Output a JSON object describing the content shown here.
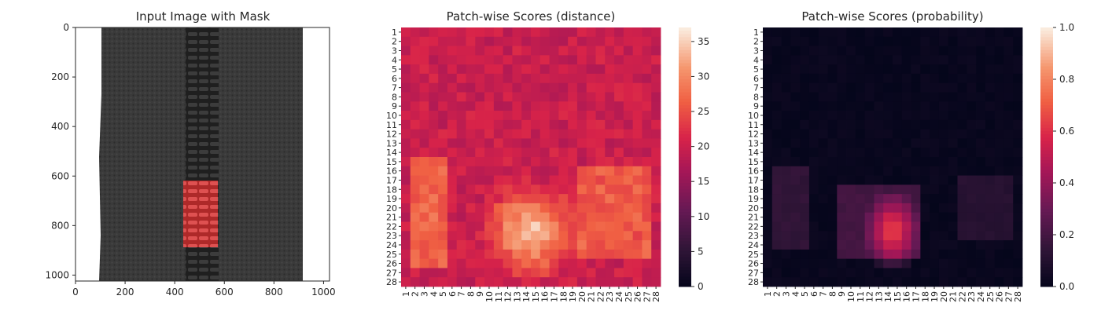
{
  "chart_data": [
    {
      "type": "image",
      "title": "Input Image with Mask",
      "xlim": [
        0,
        1024
      ],
      "ylim": [
        1024,
        0
      ],
      "xticks": [
        "0",
        "200",
        "400",
        "600",
        "800",
        "1000"
      ],
      "yticks": [
        "0",
        "200",
        "400",
        "600",
        "800",
        "1000"
      ],
      "image": {
        "background_color": "#ffffff",
        "fabric_color": "#3a3a3a",
        "fabric_extent_x": [
          100,
          905
        ],
        "zipper_teeth_color": "#2a2a2a",
        "zipper_extent_x": [
          440,
          575
        ],
        "mask_color": "#e03a3a",
        "mask_box": {
          "x": [
            435,
            570
          ],
          "y": [
            600,
            880
          ]
        }
      }
    },
    {
      "type": "heatmap",
      "title": "Patch-wise Scores (distance)",
      "rows": 28,
      "cols": 28,
      "colormap": "rocket",
      "vmin": 0,
      "vmax": 37,
      "colorbar_ticks": [
        "0",
        "5",
        "10",
        "15",
        "20",
        "25",
        "30",
        "35"
      ],
      "grid_summary": {
        "base_value": 20,
        "high_region": {
          "rows": [
            19,
            26
          ],
          "cols": [
            11,
            18
          ],
          "peak": 36
        },
        "medium_regions": [
          {
            "rows": [
              15,
              26
            ],
            "cols": [
              2,
              5
            ],
            "value": 27
          },
          {
            "rows": [
              16,
              25
            ],
            "cols": [
              20,
              27
            ],
            "value": 26
          }
        ]
      }
    },
    {
      "type": "heatmap",
      "title": "Patch-wise Scores (probability)",
      "rows": 28,
      "cols": 28,
      "colormap": "rocket",
      "vmin": 0.0,
      "vmax": 1.0,
      "colorbar_ticks": [
        "0.0",
        "0.2",
        "0.4",
        "0.6",
        "0.8",
        "1.0"
      ],
      "grid_summary": {
        "base_value": 0.02,
        "high_region": {
          "rows": [
            20,
            25
          ],
          "cols": [
            13,
            16
          ],
          "peak": 0.72
        },
        "medium_regions": [
          {
            "rows": [
              18,
              25
            ],
            "cols": [
              9,
              17
            ],
            "value": 0.2
          },
          {
            "rows": [
              16,
              24
            ],
            "cols": [
              2,
              5
            ],
            "value": 0.15
          },
          {
            "rows": [
              17,
              23
            ],
            "cols": [
              22,
              27
            ],
            "value": 0.12
          }
        ]
      }
    }
  ]
}
